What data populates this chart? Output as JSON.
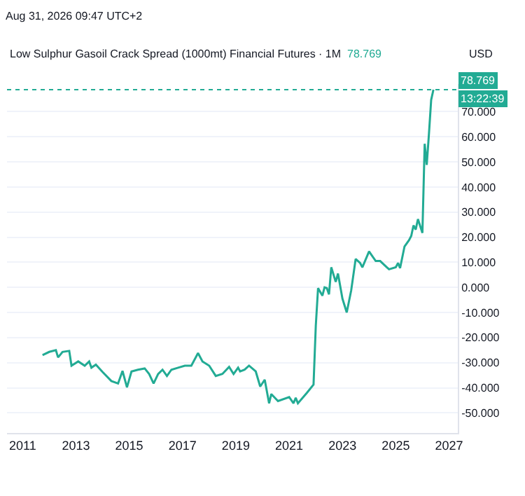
{
  "chart_data": {
    "type": "line",
    "title": "Low Sulphur Gasoil Crack Spread (1000mt) Financial Futures · 1M",
    "subtitle": "78.769",
    "ylabel": "USD",
    "annotations": [
      "Aug 31, 2026 09:47 UTC+2",
      "13:22:39"
    ],
    "x": [
      "2011-10",
      "2012-01",
      "2012-04",
      "2012-05",
      "2012-07",
      "2012-10",
      "2012-11",
      "2013-02",
      "2013-05",
      "2013-07",
      "2013-08",
      "2013-10",
      "2014-01",
      "2014-05",
      "2014-08",
      "2014-10",
      "2014-12",
      "2015-02",
      "2015-05",
      "2015-08",
      "2015-10",
      "2015-12",
      "2016-02",
      "2016-04",
      "2016-06",
      "2016-08",
      "2016-11",
      "2017-02",
      "2017-05",
      "2017-08",
      "2017-10",
      "2018-01",
      "2018-04",
      "2018-07",
      "2018-10",
      "2018-12",
      "2019-02",
      "2019-03",
      "2019-05",
      "2019-07",
      "2019-10",
      "2019-12",
      "2020-02",
      "2020-04",
      "2020-05",
      "2020-08",
      "2021-01",
      "2021-03",
      "2021-04",
      "2021-05",
      "2021-09",
      "2021-12",
      "2022-01",
      "2022-02",
      "2022-04",
      "2022-05",
      "2022-06",
      "2022-07",
      "2022-08",
      "2022-10",
      "2022-11",
      "2023-01",
      "2023-03",
      "2023-05",
      "2023-07",
      "2023-09",
      "2023-10",
      "2024-01",
      "2024-02",
      "2024-04",
      "2024-06",
      "2024-09",
      "2024-10",
      "2025-01",
      "2025-02",
      "2025-03",
      "2025-05",
      "2025-07",
      "2025-08",
      "2025-09",
      "2025-10",
      "2025-11",
      "2026-01",
      "2026-02",
      "2026-03",
      "2026-04",
      "2026-05",
      "2026-06"
    ],
    "series": [
      {
        "color": "#22ab94",
        "values": [
          -27,
          -25.7,
          -25,
          -27.9,
          -25.7,
          -25.3,
          -31.2,
          -29.5,
          -31.2,
          -29.5,
          -32,
          -30.8,
          -33.7,
          -37.3,
          -38.3,
          -33.3,
          -39.8,
          -33.5,
          -32.8,
          -32.3,
          -34.5,
          -38.3,
          -34.5,
          -32.8,
          -35.3,
          -32.8,
          -32,
          -31.2,
          -31.2,
          -26.2,
          -29.5,
          -31.2,
          -35.3,
          -34.5,
          -31.7,
          -34.5,
          -32,
          -33.5,
          -32.8,
          -31.2,
          -33.5,
          -39.5,
          -36.8,
          -46.2,
          -42.5,
          -45.3,
          -43.7,
          -46.2,
          -44,
          -46.2,
          -42,
          -38.7,
          -15.3,
          -0.3,
          -3.3,
          0,
          -0.3,
          -2.8,
          8,
          2.2,
          5.5,
          -4.5,
          -10,
          -1.2,
          11.3,
          9.7,
          8,
          14.3,
          13,
          10.5,
          10.5,
          8,
          7.2,
          8,
          9.7,
          7.7,
          16.3,
          18.8,
          20.5,
          24.7,
          23,
          27.2,
          21.7,
          57.2,
          48.8,
          61.3,
          74.7,
          78.769
        ]
      }
    ],
    "xlim": [
      "2010-06",
      "2027-05"
    ],
    "xticks": [
      {
        "value": "2011",
        "label": "2011"
      },
      {
        "value": "2013",
        "label": "2013"
      },
      {
        "value": "2015",
        "label": "2015"
      },
      {
        "value": "2017",
        "label": "2017"
      },
      {
        "value": "2019",
        "label": "2019"
      },
      {
        "value": "2021",
        "label": "2021"
      },
      {
        "value": "2023",
        "label": "2023"
      },
      {
        "value": "2025",
        "label": "2025"
      },
      {
        "value": "2027",
        "label": "2027"
      }
    ],
    "ylim": [
      -58,
      81
    ],
    "yticks": [
      {
        "value": -50,
        "label": "-50.000"
      },
      {
        "value": -40,
        "label": "-40.000"
      },
      {
        "value": -30,
        "label": "-30.000"
      },
      {
        "value": -20,
        "label": "-20.000"
      },
      {
        "value": -10,
        "label": "-10.000"
      },
      {
        "value": 0,
        "label": "0.000"
      },
      {
        "value": 10,
        "label": "10.000"
      },
      {
        "value": 20,
        "label": "20.000"
      },
      {
        "value": 30,
        "label": "30.000"
      },
      {
        "value": 40,
        "label": "40.000"
      },
      {
        "value": 50,
        "label": "50.000"
      },
      {
        "value": 60,
        "label": "60.000"
      },
      {
        "value": 70,
        "label": "70.000"
      }
    ],
    "ref_lines": [
      {
        "axis": "y",
        "value": 78.769,
        "label": "78.769",
        "color": "#22ab94",
        "line_style": "dotted"
      }
    ],
    "grid": "y",
    "line_style": "solid",
    "marker": "none",
    "legend": false
  }
}
